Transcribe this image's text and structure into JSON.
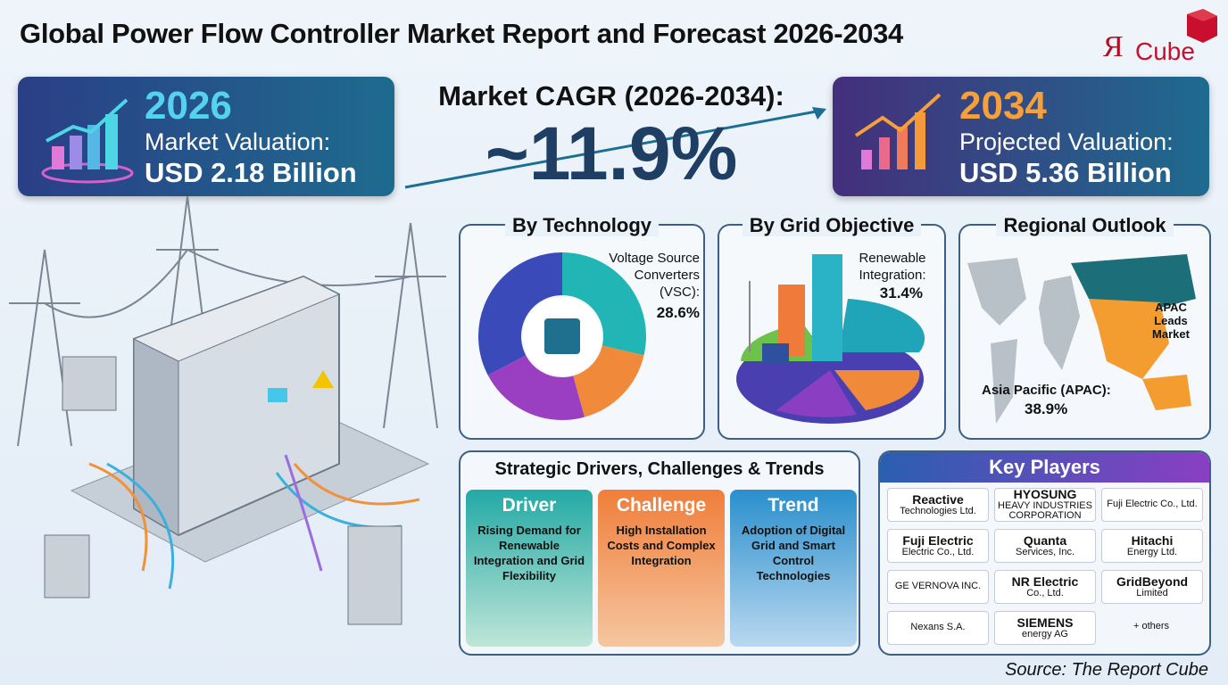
{
  "header": {
    "title": "Global Power Flow Controller Market Report and Forecast 2026-2034"
  },
  "logo": {
    "mark": "Я",
    "name": "Cube"
  },
  "start_card": {
    "year": "2026",
    "label": "Market Valuation:",
    "value": "USD 2.18 Billion"
  },
  "cagr": {
    "label": "Market CAGR (2026-2034):",
    "value": "~11.9%"
  },
  "end_card": {
    "year": "2034",
    "label": "Projected Valuation:",
    "value": "USD 5.36 Billion"
  },
  "technology": {
    "title": "By Technology",
    "label": "Voltage Source Converters (VSC):",
    "value": "28.6%"
  },
  "grid_objective": {
    "title": "By Grid Objective",
    "label": "Renewable Integration:",
    "value": "31.4%"
  },
  "regional": {
    "title": "Regional Outlook",
    "callout": "APAC Leads Market",
    "label": "Asia Pacific (APAC):",
    "value": "38.9%"
  },
  "drivers": {
    "title": "Strategic Drivers, Challenges & Trends",
    "cards": [
      {
        "heading": "Driver",
        "text": "Rising Demand for Renewable Integration and Grid Flexibility"
      },
      {
        "heading": "Challenge",
        "text": "High Installation Costs and Complex Integration"
      },
      {
        "heading": "Trend",
        "text": "Adoption of Digital Grid and Smart Control Technologies"
      }
    ]
  },
  "key_players": {
    "title": "Key Players",
    "players": [
      [
        "Reactive",
        "Technologies Ltd."
      ],
      [
        "HYOSUNG",
        "HEAVY INDUSTRIES CORPORATION"
      ],
      [
        "Fuji Electric Co., Ltd."
      ],
      [
        "Fuji Electric",
        "Electric Co., Ltd."
      ],
      [
        "Quanta",
        "Services, Inc."
      ],
      [
        "Hitachi",
        "Energy Ltd."
      ],
      [
        "GE VERNOVA INC."
      ],
      [
        "NR Electric",
        "Co., Ltd."
      ],
      [
        "GridBeyond",
        "Limited"
      ],
      [
        "Nexans S.A."
      ],
      [
        "SIEMENS",
        "energy AG"
      ],
      [
        "+ others"
      ]
    ]
  },
  "source": "Source: The Report Cube"
}
